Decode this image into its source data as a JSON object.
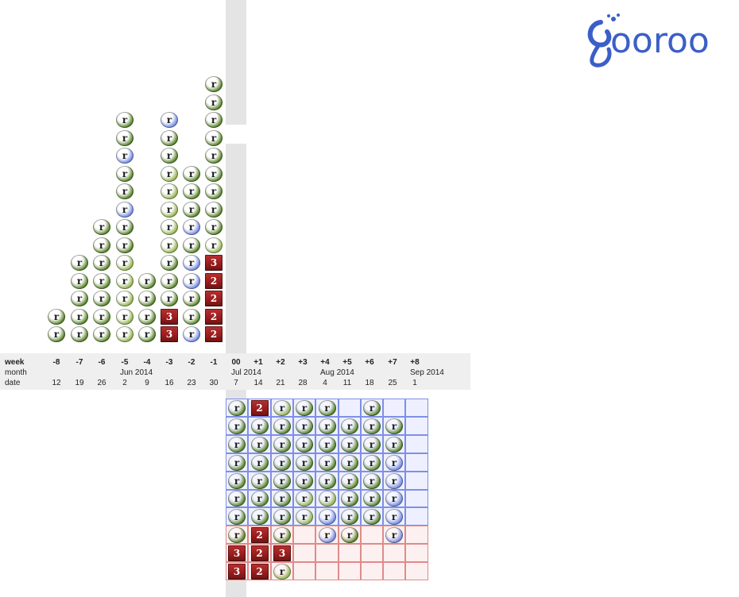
{
  "logo": {
    "text": "ooroo",
    "initial": "g",
    "color": "#3b5fc8"
  },
  "axis": {
    "week_label": "week",
    "month_label": "month",
    "date_label": "date",
    "weeks": [
      "-8",
      "-7",
      "-6",
      "-5",
      "-4",
      "-3",
      "-2",
      "-1",
      "00",
      "+1",
      "+2",
      "+3",
      "+4",
      "+5",
      "+6",
      "+7",
      "+8"
    ],
    "dates": [
      "12",
      "19",
      "26",
      "2",
      "9",
      "16",
      "23",
      "30",
      "7",
      "14",
      "21",
      "28",
      "4",
      "11",
      "18",
      "25",
      "1"
    ],
    "months": [
      {
        "label": "Jun 2014",
        "week_index": 3
      },
      {
        "label": "Jul 2014",
        "week_index": 8
      },
      {
        "label": "Aug 2014",
        "week_index": 12
      },
      {
        "label": "Sep 2014",
        "week_index": 16
      }
    ]
  },
  "legend_colors": {
    "dark_green": "#4f7d1e",
    "light_green": "#8fb04a",
    "blue": "#6f86e0",
    "red": "#9a1d1d",
    "future_cell_blue": "#eef0ff",
    "future_cell_blue_border": "#7f8fe6",
    "future_cell_red": "#fdf0f0",
    "future_cell_red_border": "#e08a8a"
  },
  "past_columns": [
    {
      "week": "-8",
      "stack": [
        "dg",
        "dg"
      ]
    },
    {
      "week": "-7",
      "stack": [
        "dg",
        "dg",
        "dg",
        "dg",
        "dg"
      ]
    },
    {
      "week": "-6",
      "stack": [
        "dg",
        "dg",
        "dg",
        "dg",
        "dg",
        "dg",
        "dg"
      ]
    },
    {
      "week": "-5",
      "stack": [
        "lg",
        "lg",
        "lg",
        "lg",
        "lg",
        "dg",
        "dg",
        "bl",
        "dg",
        "dg",
        "bl",
        "dg",
        "dg"
      ]
    },
    {
      "week": "-4",
      "stack": [
        "dg",
        "dg",
        "dg",
        "dg"
      ]
    },
    {
      "week": "-3",
      "stack": [
        "3",
        "3",
        "dg",
        "dg",
        "dg",
        "lg",
        "lg",
        "lg",
        "lg",
        "lg",
        "dg",
        "dg",
        "bl"
      ]
    },
    {
      "week": "-2",
      "stack": [
        "bl",
        "dg",
        "dg",
        "bl",
        "bl",
        "dg",
        "bl",
        "dg",
        "dg",
        "dg"
      ]
    },
    {
      "week": "-1",
      "stack": [
        "2",
        "2",
        "2",
        "2",
        "3",
        "lg",
        "dg",
        "dg",
        "dg",
        "dg",
        "dg",
        "dg",
        "dg",
        "dg",
        "dg"
      ]
    }
  ],
  "future_grid": [
    [
      "dg",
      "2",
      "lg",
      "dg",
      "dg",
      "",
      "dg",
      "",
      ""
    ],
    [
      "dg",
      "dg",
      "dg",
      "dg",
      "dg",
      "dg",
      "dg",
      "dg",
      ""
    ],
    [
      "dg",
      "dg",
      "dg",
      "dg",
      "dg",
      "dg",
      "dg",
      "dg",
      ""
    ],
    [
      "dg",
      "dg",
      "dg",
      "dg",
      "dg",
      "dg",
      "dg",
      "bl",
      ""
    ],
    [
      "dg",
      "dg",
      "dg",
      "dg",
      "dg",
      "dg",
      "dg",
      "bl",
      ""
    ],
    [
      "dg",
      "dg",
      "dg",
      "lg",
      "lg",
      "dg",
      "dg",
      "bl",
      ""
    ],
    [
      "dg",
      "dg",
      "dg",
      "lg",
      "bl",
      "dg",
      "dg",
      "bl",
      ""
    ],
    [
      "dg",
      "2",
      "dg",
      "",
      "bl",
      "dg",
      "",
      "bl",
      ""
    ],
    [
      "3",
      "2",
      "3",
      "",
      "",
      "",
      "",
      "",
      ""
    ],
    [
      "3",
      "2",
      "lg",
      "",
      "",
      "",
      "",
      "",
      ""
    ]
  ],
  "future_grid_red_from_row": 7,
  "token_letter": "r"
}
